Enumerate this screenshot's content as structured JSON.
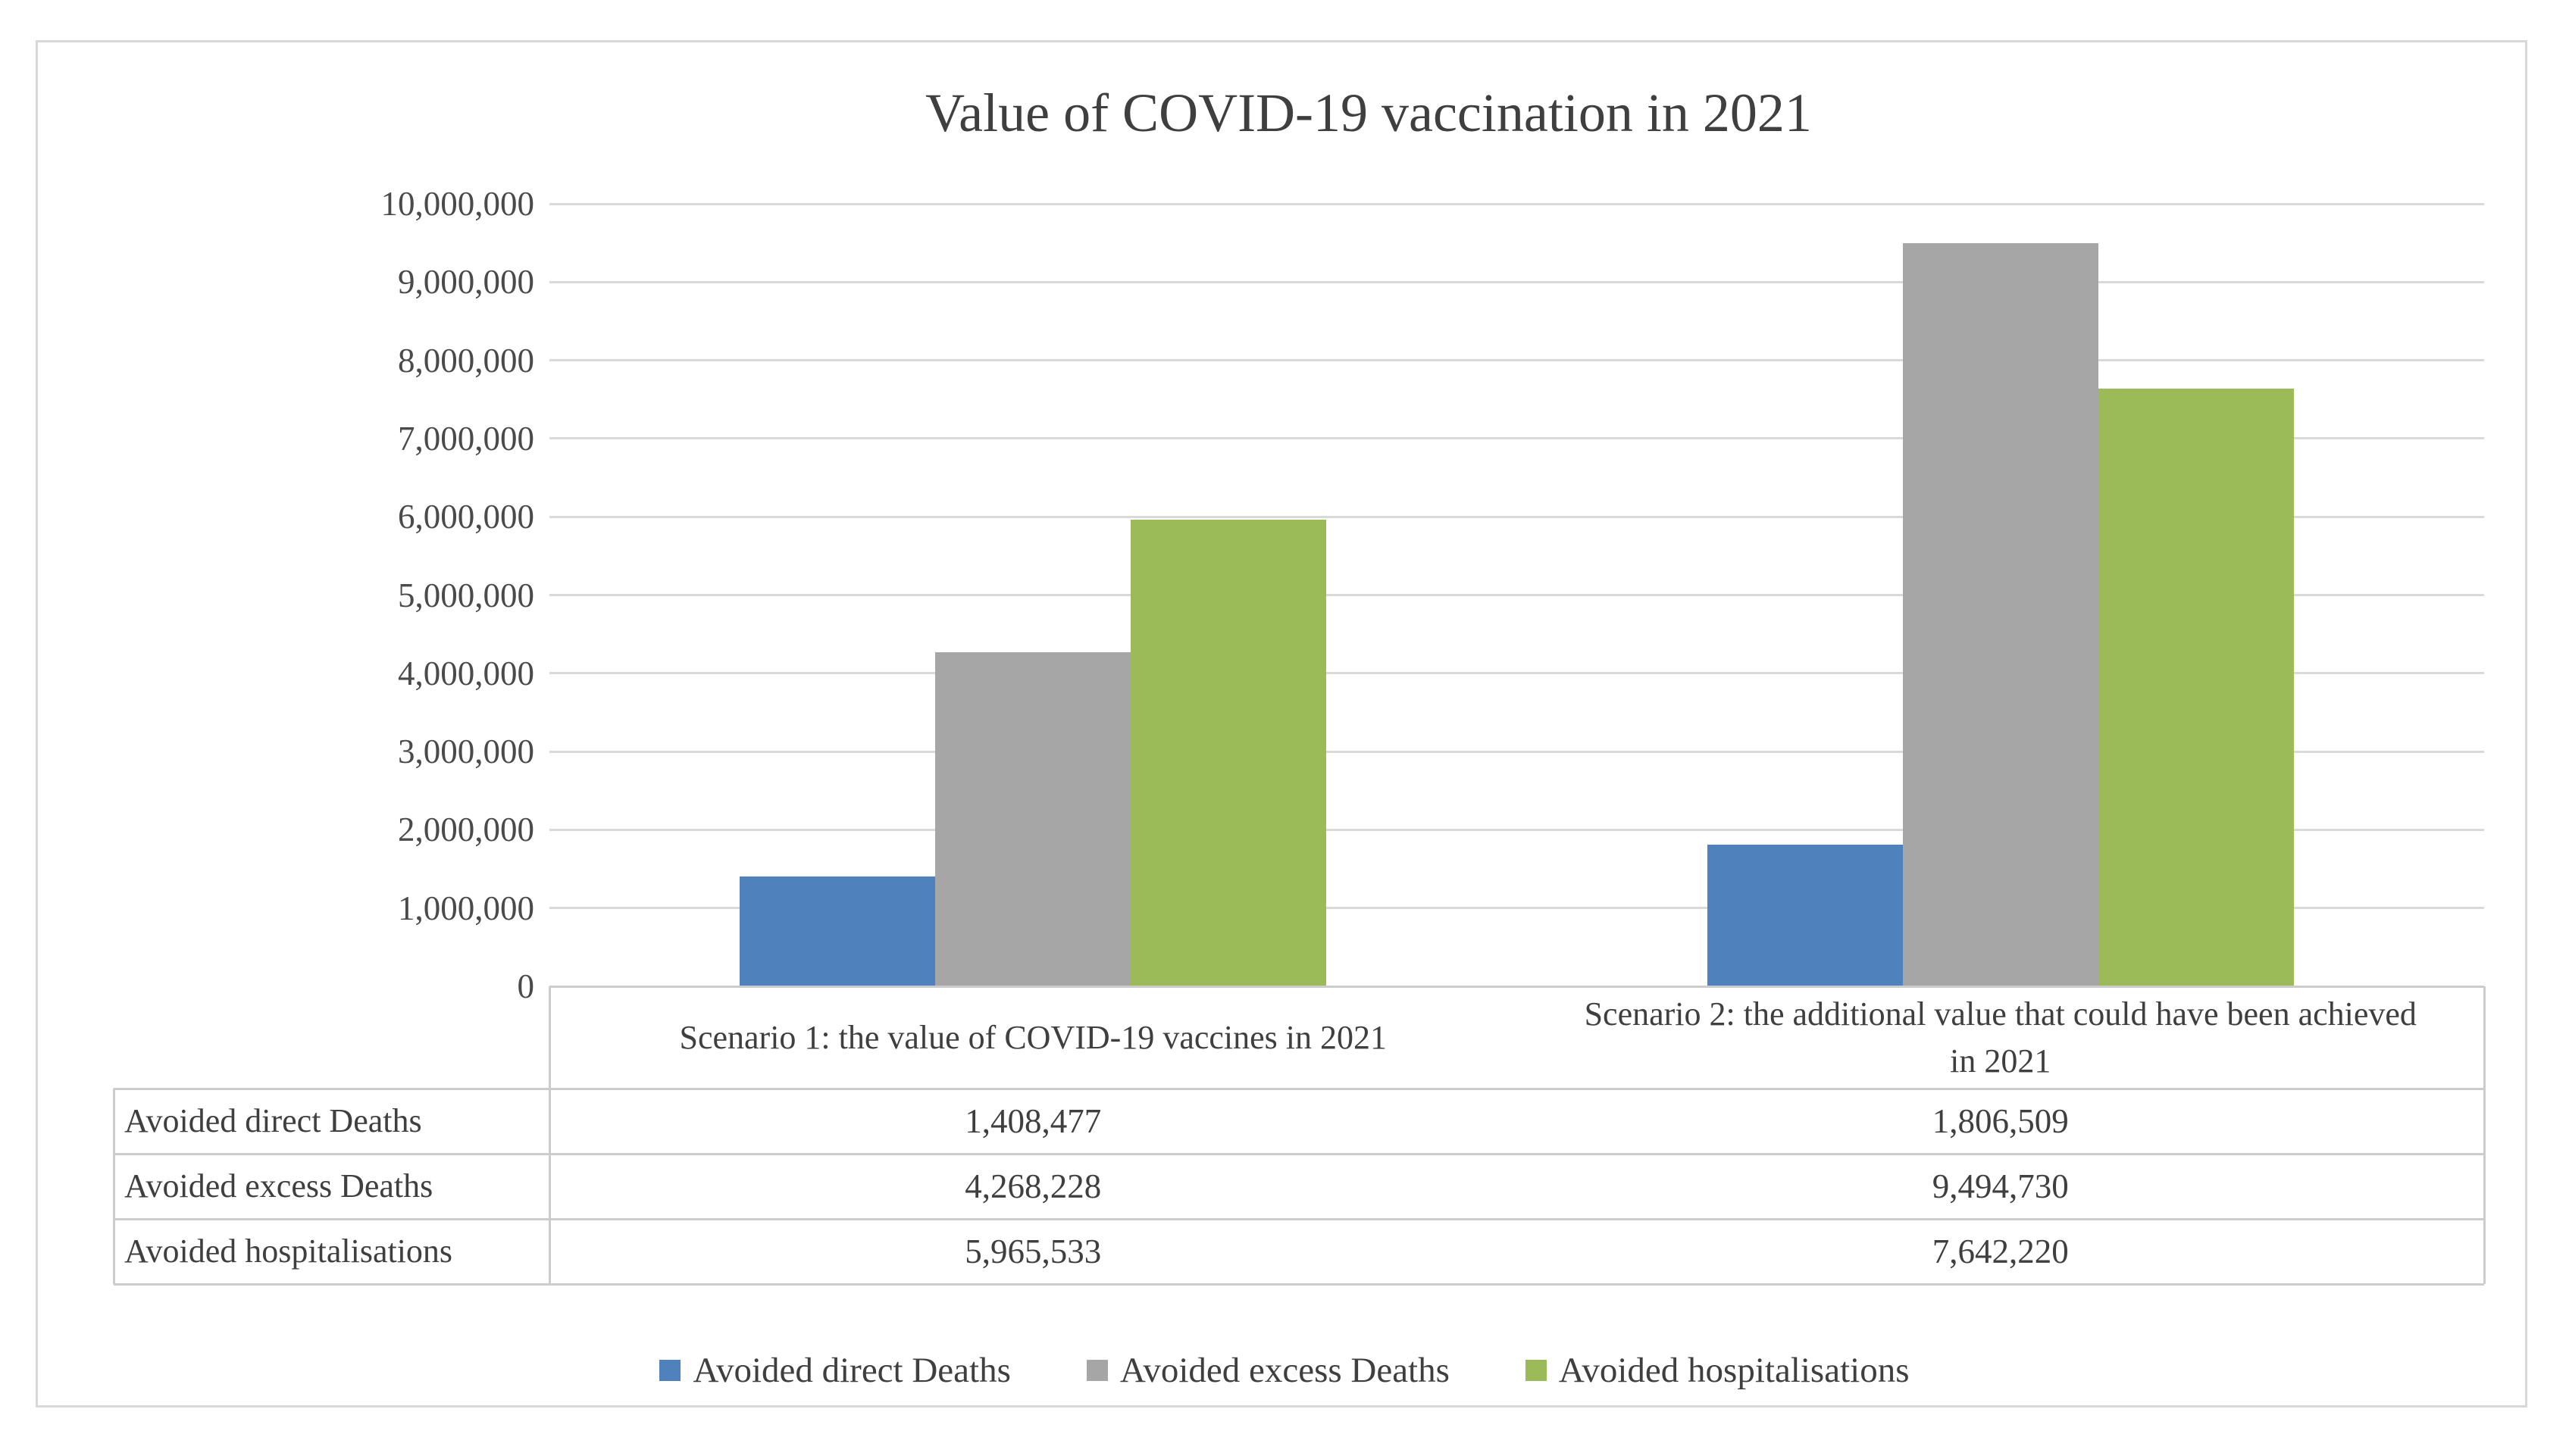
{
  "figure": {
    "title": "Value of COVID-19 vaccination in 2021"
  },
  "colors": {
    "series_blue": "#4F81BD",
    "series_gray": "#A6A6A6",
    "series_green": "#9BBB59",
    "gridline": "#D9D9D9",
    "table_border": "#CCCCCC",
    "page_border": "#D8D8D8",
    "text": "#3F3F3F"
  },
  "chart_data": {
    "type": "bar",
    "title": "Value of COVID-19 vaccination in 2021",
    "categories": [
      "Scenario 1: the value of COVID-19 vaccines in 2021",
      "Scenario 2: the additional value that could have been achieved in 2021"
    ],
    "series": [
      {
        "name": "Avoided direct Deaths",
        "color": "#4F81BD",
        "values": [
          1408477,
          1806509
        ],
        "formatted": [
          "1,408,477",
          "1,806,509"
        ]
      },
      {
        "name": "Avoided excess Deaths",
        "color": "#A6A6A6",
        "values": [
          4268228,
          9494730
        ],
        "formatted": [
          "4,268,228",
          "9,494,730"
        ]
      },
      {
        "name": "Avoided hospitalisations",
        "color": "#9BBB59",
        "values": [
          5965533,
          7642220
        ],
        "formatted": [
          "5,965,533",
          "7,642,220"
        ]
      }
    ],
    "ylim": [
      0,
      10000000
    ],
    "ytick_step": 1000000,
    "ytick_labels": [
      "0",
      "1,000,000",
      "2,000,000",
      "3,000,000",
      "4,000,000",
      "5,000,000",
      "6,000,000",
      "7,000,000",
      "8,000,000",
      "9,000,000",
      "10,000,000"
    ],
    "grid": true,
    "legend_position": "bottom",
    "show_data_table": true
  }
}
